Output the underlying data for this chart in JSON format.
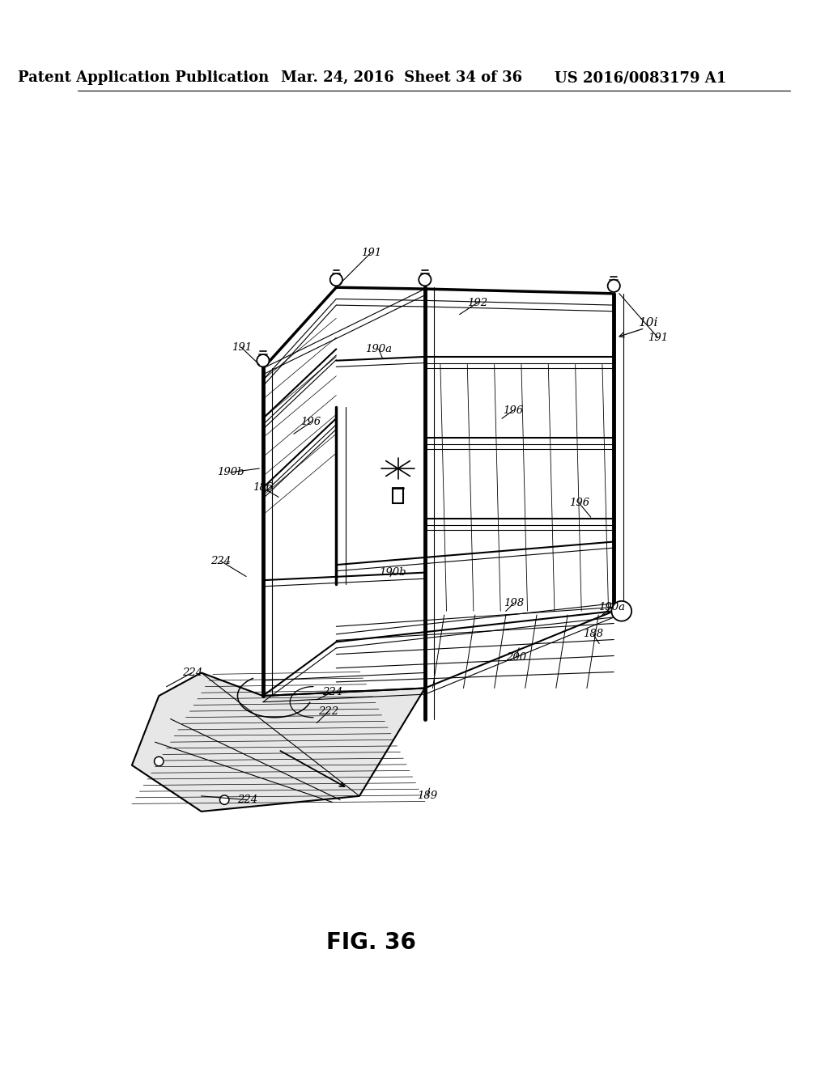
{
  "title": "FIG. 36",
  "header_left": "Patent Application Publication",
  "header_center": "Mar. 24, 2016  Sheet 34 of 36",
  "header_right": "US 2016/0083179 A1",
  "background_color": "#ffffff",
  "line_color": "#000000",
  "header_fontsize": 13,
  "title_fontsize": 20
}
